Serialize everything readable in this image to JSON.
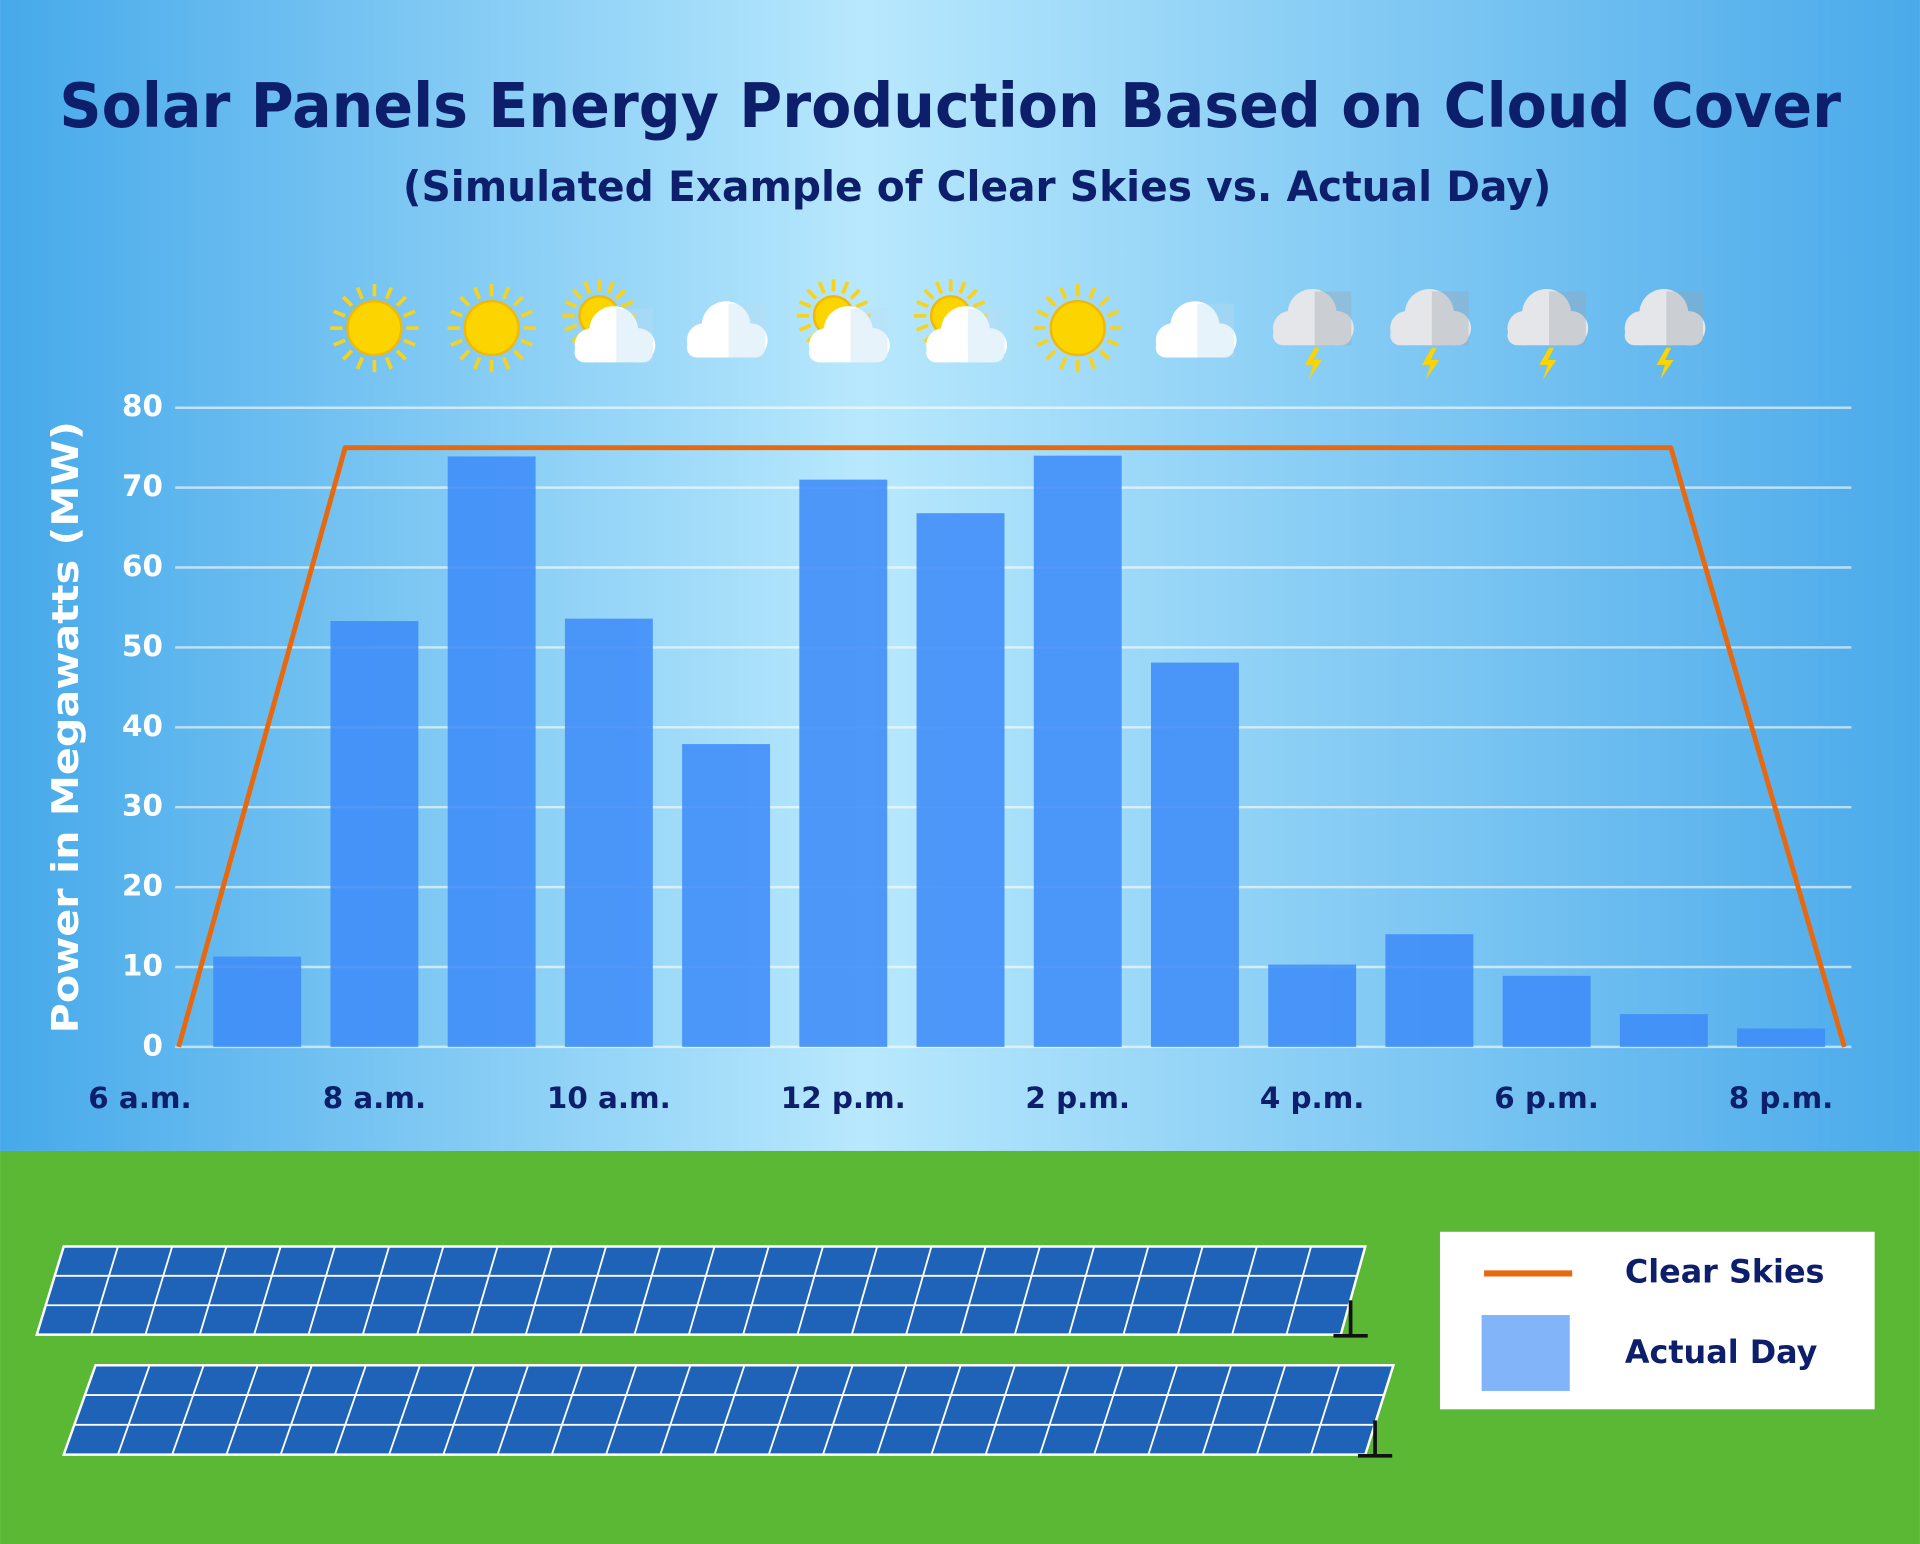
{
  "chart_data": {
    "type": "bar",
    "title": "Solar Panels Energy Production Based on Cloud Cover",
    "subtitle": "(Simulated Example of Clear Skies vs. Actual Day)",
    "y_label": "Power in Megawatts (MW)",
    "xlim": [
      6.3,
      20.6
    ],
    "xticks": [
      {
        "value": 6,
        "label": "6 a.m."
      },
      {
        "value": 8,
        "label": "8 a.m."
      },
      {
        "value": 10,
        "label": "10 a.m."
      },
      {
        "value": 12,
        "label": "12 p.m."
      },
      {
        "value": 14,
        "label": "2 p.m."
      },
      {
        "value": 16,
        "label": "4 p.m."
      },
      {
        "value": 18,
        "label": "6 p.m."
      },
      {
        "value": 20,
        "label": "8 p.m."
      }
    ],
    "ylim": [
      0,
      80
    ],
    "yticks": [
      0,
      10,
      20,
      30,
      40,
      50,
      60,
      70,
      80
    ],
    "grid": true,
    "legend": "lower right",
    "series": [
      {
        "name": "Actual Day",
        "type": "bar",
        "color": "#3f8cf8",
        "x": [
          7,
          8,
          9,
          10,
          11,
          12,
          13,
          14,
          15,
          16,
          17,
          18,
          19,
          20
        ],
        "values": [
          11.3,
          53.3,
          73.9,
          53.6,
          37.9,
          71,
          66.8,
          74,
          48.1,
          10.3,
          14.1,
          8.9,
          4.1,
          2.3
        ]
      },
      {
        "name": "Clear Skies",
        "type": "line",
        "color": "#e8680f",
        "x": [
          6.33,
          7.75,
          19.06,
          20.54
        ],
        "values": [
          0,
          75,
          75,
          0
        ]
      }
    ]
  }
}
